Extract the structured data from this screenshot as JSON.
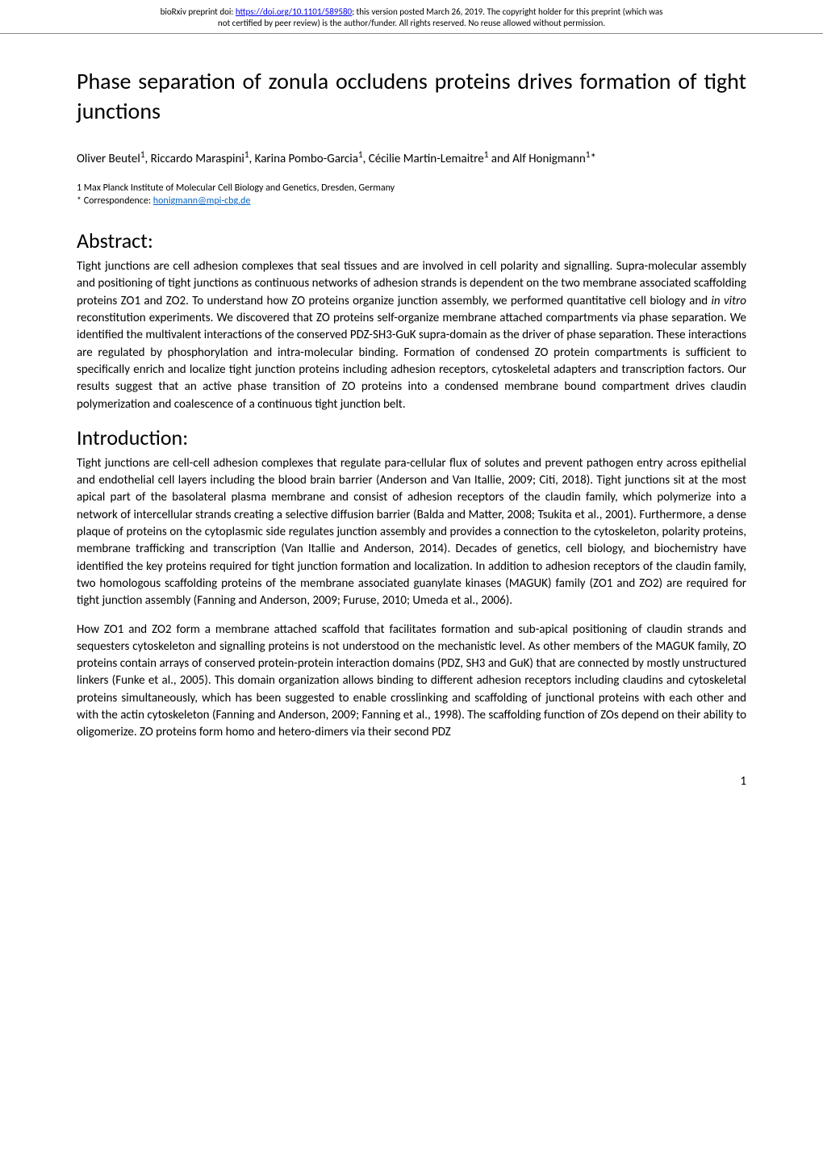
{
  "header": {
    "line1_prefix": "bioRxiv preprint doi: ",
    "doi_url": "https://doi.org/10.1101/589580",
    "line1_suffix": "; this version posted March 26, 2019. The copyright holder for this preprint (which was",
    "line2": "not certified by peer review) is the author/funder. All rights reserved. No reuse allowed without permission."
  },
  "paper": {
    "title": "Phase separation of zonula occludens proteins drives formation of tight junctions",
    "authors_html": "Oliver Beutel<sup>1</sup>, Riccardo Maraspini<sup>1</sup>, Karina Pombo-Garcia<sup>1</sup>, Cécilie Martin-Lemaitre<sup>1</sup> and Alf Honigmann<sup>1</sup>*",
    "affiliation": "1 Max Planck Institute of Molecular Cell Biology and Genetics, Dresden, Germany",
    "correspondence_prefix": "* Correspondence: ",
    "correspondence_email": "honigmann@mpi-cbg.de"
  },
  "abstract": {
    "heading": "Abstract:",
    "text_before_italic": "Tight junctions are cell adhesion complexes that seal tissues and are involved in cell polarity and signalling. Supra-molecular assembly and positioning of tight junctions as continuous networks of adhesion strands is dependent on the two membrane associated scaffolding proteins ZO1 and ZO2. To understand how ZO proteins organize junction assembly, we performed quantitative cell biology and ",
    "italic_text": "in vitro",
    "text_after_italic": " reconstitution experiments. We discovered that ZO proteins self-organize membrane attached compartments via phase separation. We identified the multivalent interactions of the conserved PDZ-SH3-GuK supra-domain as the driver of phase separation. These interactions are regulated by phosphorylation and intra-molecular binding. Formation of condensed ZO protein compartments is sufficient to specifically enrich and localize tight junction proteins including adhesion receptors, cytoskeletal adapters and transcription factors. Our results suggest that an active phase transition of ZO proteins into a condensed membrane bound compartment drives claudin polymerization and coalescence of a continuous tight junction belt."
  },
  "introduction": {
    "heading": "Introduction:",
    "para1": "Tight junctions are cell-cell adhesion complexes that regulate para-cellular flux of solutes and prevent pathogen entry across epithelial and endothelial cell layers including the blood brain barrier (Anderson and Van Itallie, 2009; Citi, 2018). Tight junctions sit at the most apical part of the basolateral plasma membrane and consist of adhesion receptors of the claudin family, which polymerize into a network of intercellular strands creating a selective diffusion barrier (Balda and Matter, 2008; Tsukita et al., 2001). Furthermore, a dense plaque of proteins on the cytoplasmic side regulates junction assembly and provides a connection to the cytoskeleton, polarity proteins, membrane trafficking and transcription (Van Itallie and Anderson, 2014). Decades of genetics, cell biology, and biochemistry have identified the key proteins required for tight junction formation and localization. In addition to adhesion receptors of the claudin family, two homologous scaffolding proteins of the membrane associated guanylate kinases (MAGUK) family (ZO1 and ZO2) are required for tight junction assembly (Fanning and Anderson, 2009; Furuse, 2010; Umeda et al., 2006).",
    "para2": "How ZO1 and ZO2 form a membrane attached scaffold that facilitates formation and sub-apical positioning of claudin strands and sequesters cytoskeleton and signalling proteins is not understood on the mechanistic level. As other members of the MAGUK family, ZO proteins contain arrays of conserved protein-protein interaction domains (PDZ, SH3 and GuK) that are connected by mostly unstructured linkers (Funke et al., 2005). This domain organization allows binding to different adhesion receptors including claudins and cytoskeletal proteins simultaneously, which has been suggested to enable crosslinking and scaffolding of junctional proteins with each other and with the actin cytoskeleton (Fanning and Anderson, 2009; Fanning et al., 1998). The scaffolding function of ZOs depend on their ability to oligomerize. ZO proteins form homo and hetero-dimers via their second PDZ"
  },
  "page_number": "1"
}
